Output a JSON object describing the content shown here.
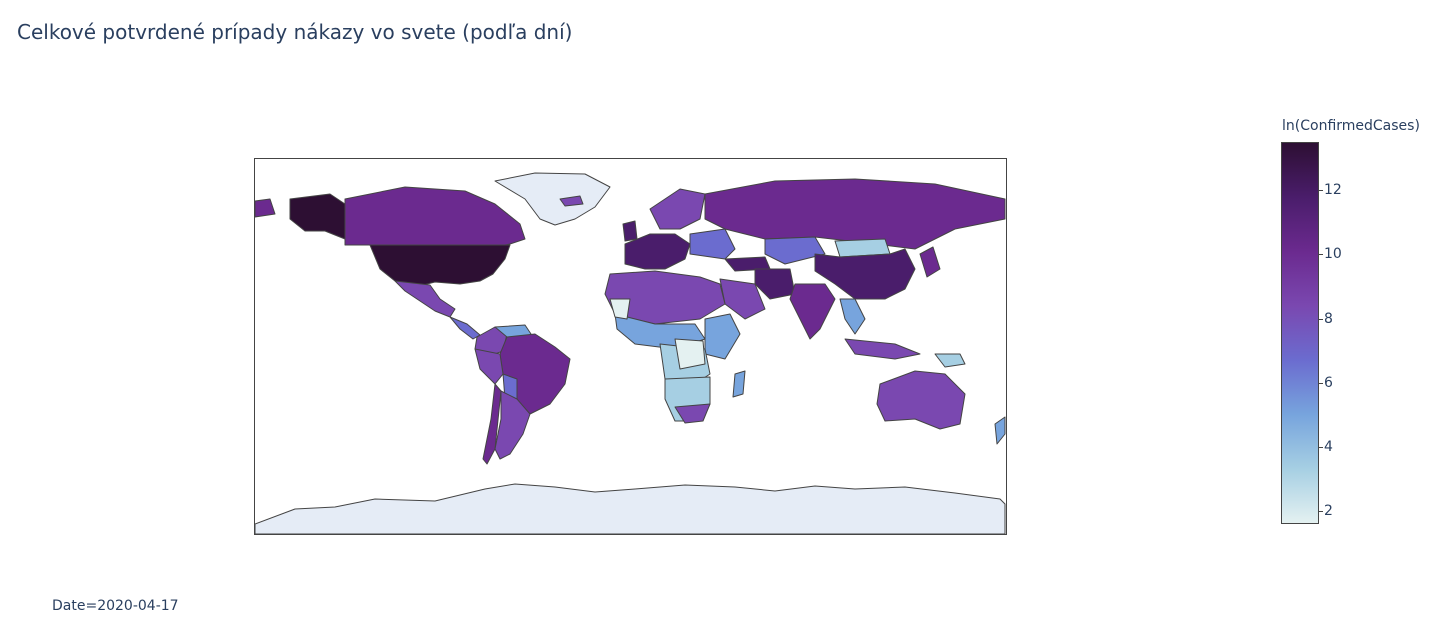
{
  "title": "Celkové potvrdené prípady nákazy vo svete (podľa dní)",
  "colorbar": {
    "title": "ln(ConfirmedCases)",
    "min": 1.6,
    "max": 13.5,
    "ticks": [
      "12",
      "10",
      "8",
      "6",
      "4",
      "2"
    ],
    "tick_values": [
      12,
      10,
      8,
      6,
      4,
      2
    ],
    "colorscale": [
      "#e4f1f1",
      "#a6cfe3",
      "#77a4dd",
      "#6b6ccf",
      "#7a48b0",
      "#6b2a8f",
      "#4a1d6b",
      "#2d0f33"
    ]
  },
  "date_label": "Date=2020-04-17",
  "colors": {
    "land_no_data": "#e5ecf6",
    "border": "#444444",
    "text": "#2a3f5f"
  }
}
